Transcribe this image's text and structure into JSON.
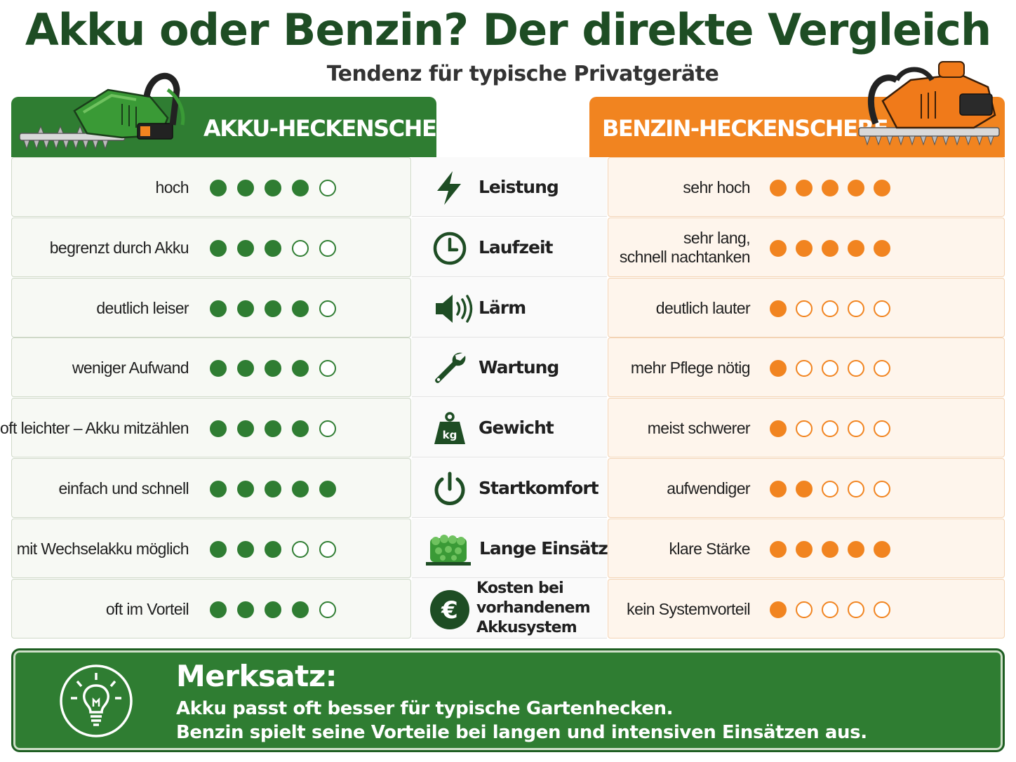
{
  "title": "Akku oder Benzin? Der direkte Vergleich",
  "subtitle": "Tendenz für typische Privatgeräte",
  "colors": {
    "akku": "#2f7d32",
    "benzin": "#f18420",
    "dark_green": "#1e4d24"
  },
  "akku_header": {
    "label": "AKKU-HECKENSCHERE",
    "icon": "cordless-hedge-trimmer-icon"
  },
  "benzin_header": {
    "label": "BENZIN-HECKENSCHERE",
    "icon": "petrol-hedge-trimmer-icon"
  },
  "rows": [
    {
      "criterion": "Leistung",
      "icon": "lightning-icon",
      "akku_text": "hoch",
      "akku_rating": 4,
      "benzin_text": "sehr hoch",
      "benzin_rating": 5
    },
    {
      "criterion": "Laufzeit",
      "icon": "clock-icon",
      "akku_text": "begrenzt durch Akku",
      "akku_rating": 3,
      "benzin_text": "sehr lang,\nschnell nachtanken",
      "benzin_rating": 5
    },
    {
      "criterion": "Lärm",
      "icon": "speaker-icon",
      "akku_text": "deutlich leiser",
      "akku_rating": 4,
      "benzin_text": "deutlich lauter",
      "benzin_rating": 1
    },
    {
      "criterion": "Wartung",
      "icon": "wrench-icon",
      "akku_text": "weniger Aufwand",
      "akku_rating": 4,
      "benzin_text": "mehr Pflege nötig",
      "benzin_rating": 1
    },
    {
      "criterion": "Gewicht",
      "icon": "weight-kg-icon",
      "icon_text": "kg",
      "akku_text": "oft leichter – Akku mitzählen",
      "akku_rating": 4,
      "benzin_text": "meist schwerer",
      "benzin_rating": 1
    },
    {
      "criterion": "Startkomfort",
      "icon": "power-icon",
      "akku_text": "einfach und schnell",
      "akku_rating": 5,
      "benzin_text": "aufwendiger",
      "benzin_rating": 2
    },
    {
      "criterion": "Lange Einsätze",
      "icon": "hedge-icon",
      "akku_text": "mit Wechselakku möglich",
      "akku_rating": 3,
      "benzin_text": "klare Stärke",
      "benzin_rating": 5
    },
    {
      "criterion": "Kosten bei\nvorhandenem\nAkkusystem",
      "icon": "euro-icon",
      "icon_text": "€",
      "akku_text": "oft im Vorteil",
      "akku_rating": 4,
      "benzin_text": "kein Systemvorteil",
      "benzin_rating": 1
    }
  ],
  "max_rating": 5,
  "merksatz": {
    "title": "Merksatz:",
    "icon": "lightbulb-icon",
    "line1": "Akku passt oft besser für typische Gartenhecken.",
    "line2": "Benzin spielt seine Vorteile bei langen und intensiven Einsätzen aus."
  }
}
